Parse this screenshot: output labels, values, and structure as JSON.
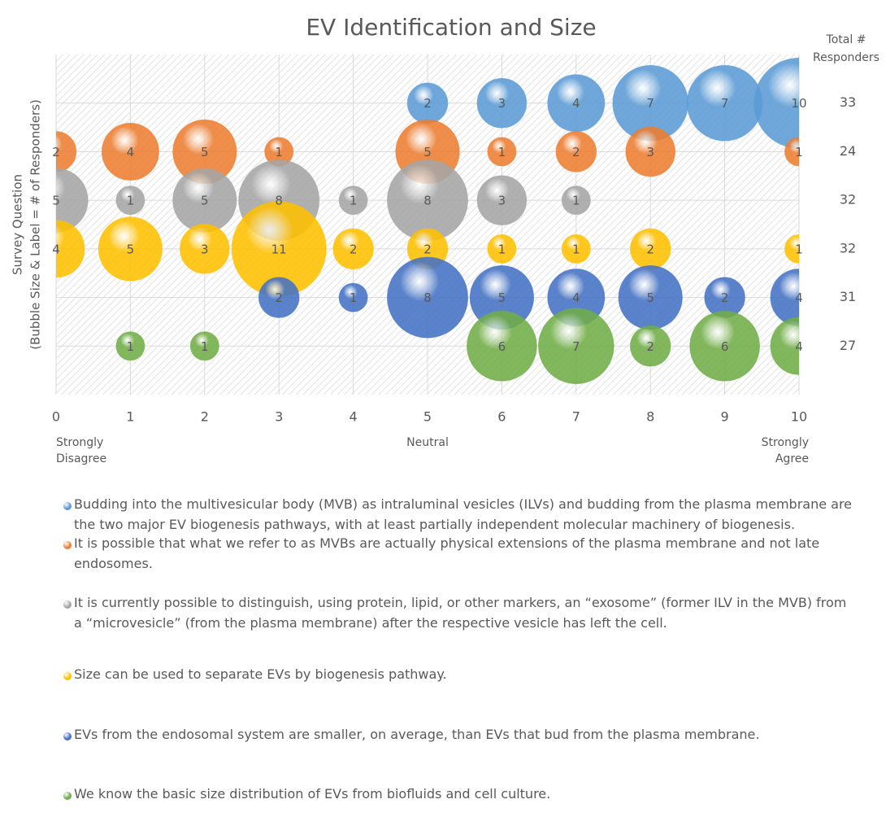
{
  "chart_data": {
    "type": "bubble",
    "title": "EV Identification and Size",
    "ylabel": [
      "Survey Question",
      "(Bubble Size & Label = # of Responders)"
    ],
    "totals_label": "Total # Responders",
    "xlim": [
      0,
      10
    ],
    "xticks": [
      0,
      1,
      2,
      3,
      4,
      5,
      6,
      7,
      8,
      9,
      10
    ],
    "ylim": [
      0,
      7
    ],
    "grid": true,
    "x_annotations": [
      {
        "value": 0,
        "label": "Strongly Disagree"
      },
      {
        "value": 5,
        "label": "Neutral"
      },
      {
        "value": 10,
        "label": "Strongly Agree"
      }
    ],
    "series": [
      {
        "name": "Budding into the multivesicular body (MVB) as intraluminal vesicles (ILVs) and budding from the plasma membrane are the two major EV biogenesis pathways, with at least partially independent molecular machinery of biogenesis.",
        "color": "#5b9bd5",
        "total": 33,
        "x": [
          5,
          6,
          7,
          8,
          9,
          10
        ],
        "values": [
          6,
          6,
          6,
          6,
          6,
          6
        ],
        "sizes": [
          2,
          3,
          4,
          7,
          7,
          10
        ]
      },
      {
        "name": "It is possible that what we refer to as MVBs are actually physical extensions of the plasma membrane and not late endosomes.",
        "color": "#ed7d31",
        "total": 24,
        "x": [
          0,
          1,
          2,
          3,
          5,
          6,
          7,
          8,
          10
        ],
        "values": [
          5,
          5,
          5,
          5,
          5,
          5,
          5,
          5,
          5
        ],
        "sizes": [
          2,
          4,
          5,
          1,
          5,
          1,
          2,
          3,
          1
        ]
      },
      {
        "name": "It is currently possible to distinguish, using protein, lipid, or other markers, an “exosome” (former ILV in the MVB) from a “microvesicle” (from the plasma membrane) after the respective vesicle has left the cell.",
        "color": "#a5a5a5",
        "total": 32,
        "x": [
          0,
          1,
          2,
          3,
          4,
          5,
          6,
          7
        ],
        "values": [
          4,
          4,
          4,
          4,
          4,
          4,
          4,
          4
        ],
        "sizes": [
          5,
          1,
          5,
          8,
          1,
          8,
          3,
          1
        ]
      },
      {
        "name": "Size can be used to separate EVs by biogenesis pathway.",
        "color": "#ffc000",
        "total": 32,
        "x": [
          0,
          1,
          2,
          3,
          4,
          5,
          6,
          7,
          8,
          10
        ],
        "values": [
          3,
          3,
          3,
          3,
          3,
          3,
          3,
          3,
          3,
          3
        ],
        "sizes": [
          4,
          5,
          3,
          11,
          2,
          2,
          1,
          1,
          2,
          1
        ]
      },
      {
        "name": "EVs from the endosomal system are smaller, on average, than EVs that bud from the plasma membrane.",
        "color": "#4472c4",
        "total": 31,
        "x": [
          3,
          4,
          5,
          6,
          7,
          8,
          9,
          10
        ],
        "values": [
          2,
          2,
          2,
          2,
          2,
          2,
          2,
          2
        ],
        "sizes": [
          2,
          1,
          8,
          5,
          4,
          5,
          2,
          4
        ]
      },
      {
        "name": "We know the basic size distribution of EVs from biofluids and cell culture.",
        "color": "#70ad47",
        "total": 27,
        "x": [
          1,
          2,
          6,
          7,
          8,
          9,
          10
        ],
        "values": [
          1,
          1,
          1,
          1,
          1,
          1,
          1
        ],
        "sizes": [
          1,
          1,
          6,
          7,
          2,
          6,
          4
        ]
      }
    ]
  }
}
